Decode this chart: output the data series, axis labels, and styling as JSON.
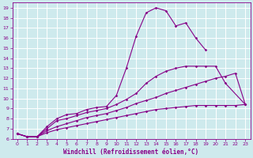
{
  "xlabel": "Windchill (Refroidissement éolien,°C)",
  "background_color": "#ceeaed",
  "grid_color": "#ffffff",
  "line_color": "#880088",
  "xlim": [
    -0.5,
    23.5
  ],
  "ylim": [
    6,
    19.5
  ],
  "xticks": [
    0,
    1,
    2,
    3,
    4,
    5,
    6,
    7,
    8,
    9,
    10,
    11,
    12,
    13,
    14,
    15,
    16,
    17,
    18,
    19,
    20,
    21,
    22,
    23
  ],
  "yticks": [
    6,
    7,
    8,
    9,
    10,
    11,
    12,
    13,
    14,
    15,
    16,
    17,
    18,
    19
  ],
  "line1_x": [
    0,
    1,
    2,
    3,
    4,
    5,
    6,
    7,
    8,
    9,
    10,
    11,
    12,
    13,
    14,
    15,
    16,
    17,
    18,
    19
  ],
  "line1_y": [
    6.5,
    6.2,
    6.2,
    7.2,
    8.0,
    8.4,
    8.5,
    8.9,
    9.1,
    9.2,
    10.3,
    13.0,
    16.2,
    18.5,
    19.0,
    18.7,
    17.2,
    17.5,
    16.0,
    14.8
  ],
  "line2_x": [
    0,
    1,
    2,
    3,
    4,
    5,
    6,
    7,
    8,
    9,
    10,
    11,
    12,
    13,
    14,
    15,
    16,
    17,
    18,
    19,
    20,
    21,
    23
  ],
  "line2_y": [
    6.5,
    6.2,
    6.2,
    7.0,
    7.8,
    8.0,
    8.3,
    8.6,
    8.8,
    9.0,
    9.4,
    9.9,
    10.5,
    11.5,
    12.2,
    12.7,
    13.0,
    13.2,
    13.2,
    13.2,
    13.2,
    11.5,
    9.4
  ],
  "line3_x": [
    0,
    1,
    2,
    3,
    4,
    5,
    6,
    7,
    8,
    9,
    10,
    11,
    12,
    13,
    14,
    15,
    16,
    17,
    18,
    19,
    20,
    21,
    22,
    23
  ],
  "line3_y": [
    6.5,
    6.2,
    6.2,
    6.8,
    7.2,
    7.5,
    7.8,
    8.1,
    8.3,
    8.5,
    8.8,
    9.1,
    9.5,
    9.8,
    10.1,
    10.5,
    10.8,
    11.1,
    11.4,
    11.7,
    12.0,
    12.2,
    12.5,
    9.4
  ],
  "line4_x": [
    0,
    1,
    2,
    3,
    4,
    5,
    6,
    7,
    8,
    9,
    10,
    11,
    12,
    13,
    14,
    15,
    16,
    17,
    18,
    19,
    20,
    21,
    22,
    23
  ],
  "line4_y": [
    6.5,
    6.2,
    6.2,
    6.6,
    6.9,
    7.1,
    7.3,
    7.5,
    7.7,
    7.9,
    8.1,
    8.3,
    8.5,
    8.7,
    8.9,
    9.0,
    9.1,
    9.2,
    9.3,
    9.3,
    9.3,
    9.3,
    9.3,
    9.4
  ]
}
